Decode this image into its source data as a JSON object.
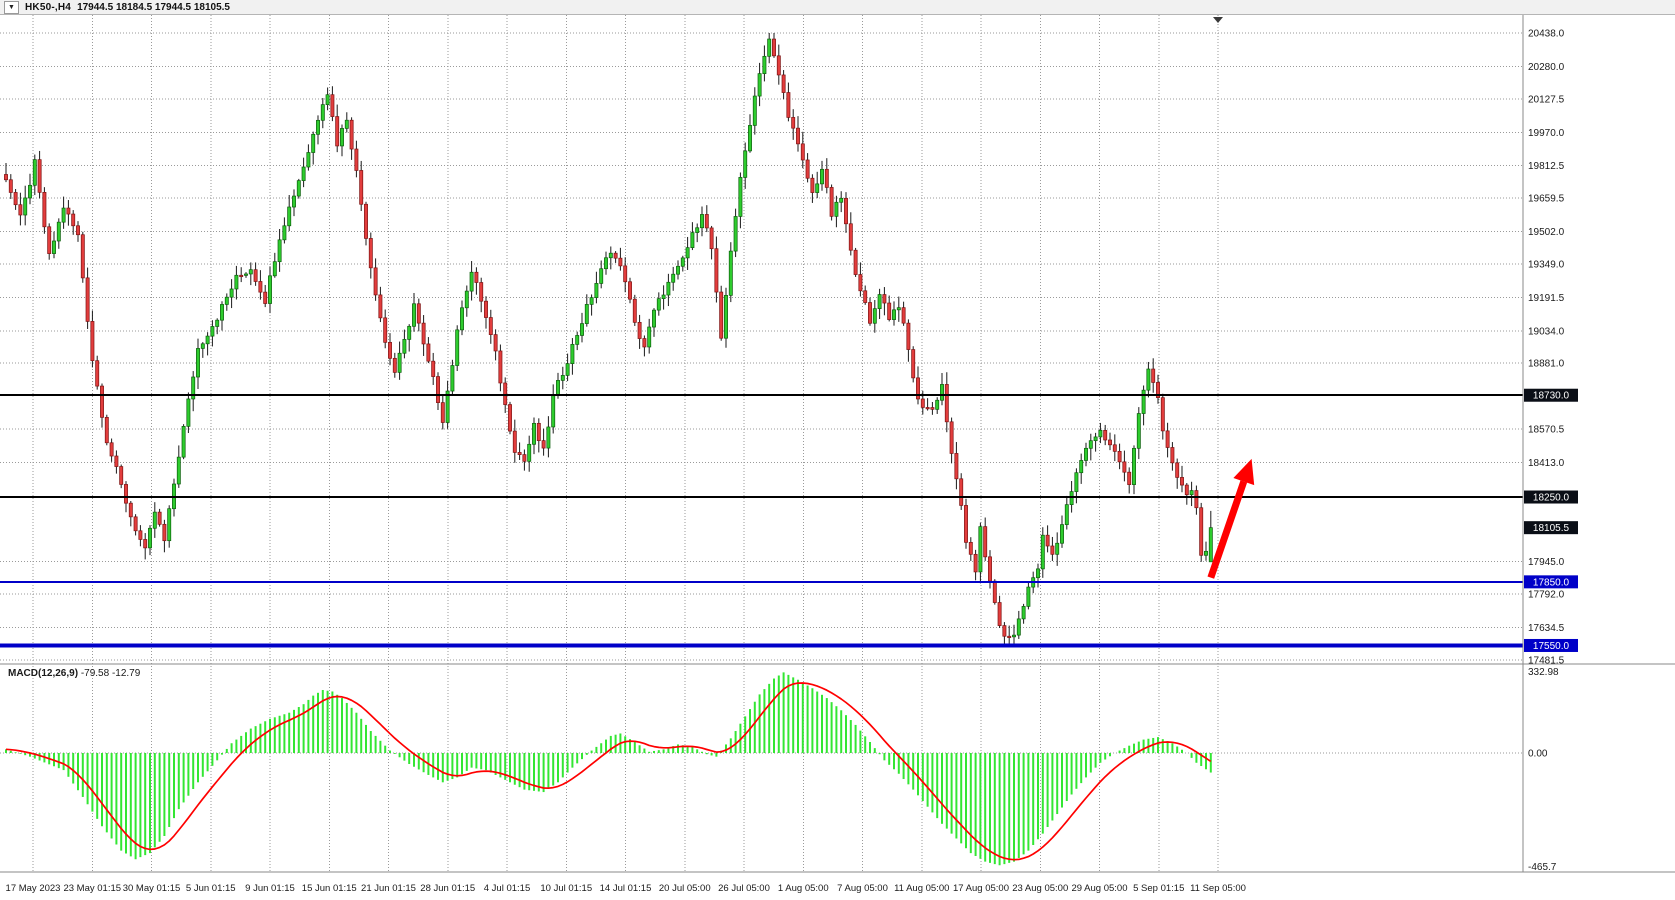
{
  "window": {
    "symbol_period": "HK50-,H4",
    "quote": "17944.5 18184.5 17944.5 18105.5",
    "dropdown_glyph": "▼"
  },
  "colors": {
    "bull": "#2ecc2e",
    "bull_border": "#0b5e0b",
    "bear": "#e23d3d",
    "bear_border": "#7e1212",
    "wick": "#1a1a1a",
    "grid": "#9a9a9a",
    "separator": "#8a8a8a",
    "text": "#1a1a1a",
    "hline_black": "#000000",
    "hline_blue": "#0000c8",
    "tag_dark": "#0a0e16",
    "macd_hist": "#33e633",
    "macd_signal": "#ff0000",
    "arrow": "#ff0000",
    "shift_marker": "#3a3a3a"
  },
  "chart_data": {
    "type": "candlestick_with_macd",
    "symbol": "HK50-",
    "timeframe": "H4",
    "quote": {
      "open": 17944.5,
      "high": 18184.5,
      "low": 17944.5,
      "close": 18105.5
    },
    "y_ticks": [
      20438.0,
      20280.0,
      20127.5,
      19970.0,
      19812.5,
      19659.5,
      19502.0,
      19349.0,
      19191.5,
      19034.0,
      18881.0,
      18570.5,
      18413.0,
      17945.0,
      17792.0,
      17634.5,
      17481.5
    ],
    "levels": [
      {
        "price": 18730.0,
        "label": "18730.0",
        "color": "#000000",
        "width": 2,
        "tag": "#0a0e16"
      },
      {
        "price": 18250.0,
        "label": "18250.0",
        "color": "#000000",
        "width": 2,
        "tag": "#0a0e16"
      },
      {
        "price": 18105.5,
        "label": "18105.5",
        "color": "#0a0e16",
        "width": 0,
        "tag": "#0a0e16"
      },
      {
        "price": 17850.0,
        "label": "17850.0",
        "color": "#0000c8",
        "width": 2,
        "tag": "#0000c8"
      },
      {
        "price": 17550.0,
        "label": "17550.0",
        "color": "#0000c8",
        "width": 4,
        "tag": "#0000c8"
      }
    ],
    "x_labels": [
      "17 May 2023",
      "23 May 01:15",
      "30 May 01:15",
      "5 Jun 01:15",
      "9 Jun 01:15",
      "15 Jun 01:15",
      "21 Jun 01:15",
      "28 Jun 01:15",
      "4 Jul 01:15",
      "10 Jul 01:15",
      "14 Jul 01:15",
      "20 Jul 05:00",
      "26 Jul 05:00",
      "1 Aug 05:00",
      "7 Aug 05:00",
      "11 Aug 05:00",
      "17 Aug 05:00",
      "23 Aug 05:00",
      "29 Aug 05:00",
      "5 Sep 01:15",
      "11 Sep 05:00"
    ],
    "candle_count": 252,
    "price_anchors": [
      [
        0,
        19760
      ],
      [
        3,
        19560
      ],
      [
        6,
        19820
      ],
      [
        9,
        19380
      ],
      [
        12,
        19620
      ],
      [
        15,
        19480
      ],
      [
        18,
        18900
      ],
      [
        21,
        18520
      ],
      [
        24,
        18300
      ],
      [
        26,
        18160
      ],
      [
        29,
        17990
      ],
      [
        31,
        18180
      ],
      [
        33,
        18040
      ],
      [
        36,
        18450
      ],
      [
        40,
        18950
      ],
      [
        44,
        19100
      ],
      [
        48,
        19280
      ],
      [
        51,
        19330
      ],
      [
        54,
        19180
      ],
      [
        57,
        19480
      ],
      [
        60,
        19680
      ],
      [
        63,
        19880
      ],
      [
        66,
        20120
      ],
      [
        67,
        20160
      ],
      [
        69,
        19920
      ],
      [
        71,
        20040
      ],
      [
        73,
        19780
      ],
      [
        76,
        19340
      ],
      [
        79,
        18980
      ],
      [
        81,
        18840
      ],
      [
        83,
        18980
      ],
      [
        85,
        19160
      ],
      [
        87,
        18960
      ],
      [
        89,
        18800
      ],
      [
        91,
        18620
      ],
      [
        93,
        18880
      ],
      [
        95,
        19160
      ],
      [
        97,
        19310
      ],
      [
        99,
        19180
      ],
      [
        102,
        18920
      ],
      [
        104,
        18680
      ],
      [
        106,
        18480
      ],
      [
        108,
        18420
      ],
      [
        110,
        18580
      ],
      [
        112,
        18460
      ],
      [
        114,
        18720
      ],
      [
        117,
        18900
      ],
      [
        120,
        19080
      ],
      [
        123,
        19260
      ],
      [
        126,
        19420
      ],
      [
        129,
        19280
      ],
      [
        131,
        19060
      ],
      [
        133,
        18960
      ],
      [
        135,
        19120
      ],
      [
        137,
        19220
      ],
      [
        140,
        19320
      ],
      [
        143,
        19480
      ],
      [
        145,
        19600
      ],
      [
        147,
        19420
      ],
      [
        149,
        18980
      ],
      [
        151,
        19420
      ],
      [
        153,
        19740
      ],
      [
        155,
        20020
      ],
      [
        157,
        20260
      ],
      [
        159,
        20400
      ],
      [
        161,
        20240
      ],
      [
        163,
        20060
      ],
      [
        165,
        19900
      ],
      [
        168,
        19680
      ],
      [
        170,
        19800
      ],
      [
        172,
        19580
      ],
      [
        174,
        19660
      ],
      [
        176,
        19400
      ],
      [
        178,
        19240
      ],
      [
        180,
        19060
      ],
      [
        182,
        19220
      ],
      [
        184,
        19100
      ],
      [
        186,
        19160
      ],
      [
        188,
        18940
      ],
      [
        190,
        18700
      ],
      [
        193,
        18660
      ],
      [
        195,
        18780
      ],
      [
        197,
        18440
      ],
      [
        199,
        18220
      ],
      [
        200,
        18020
      ],
      [
        202,
        17900
      ],
      [
        203,
        18120
      ],
      [
        205,
        17840
      ],
      [
        207,
        17640
      ],
      [
        209,
        17570
      ],
      [
        211,
        17660
      ],
      [
        213,
        17820
      ],
      [
        215,
        17920
      ],
      [
        216,
        18060
      ],
      [
        218,
        17980
      ],
      [
        220,
        18120
      ],
      [
        222,
        18280
      ],
      [
        224,
        18420
      ],
      [
        226,
        18520
      ],
      [
        228,
        18560
      ],
      [
        230,
        18500
      ],
      [
        232,
        18420
      ],
      [
        234,
        18300
      ],
      [
        236,
        18660
      ],
      [
        238,
        18860
      ],
      [
        240,
        18700
      ],
      [
        241,
        18560
      ],
      [
        243,
        18400
      ],
      [
        245,
        18300
      ],
      [
        247,
        18260
      ],
      [
        248,
        18180
      ],
      [
        249,
        17960
      ],
      [
        250,
        18000
      ],
      [
        251,
        18105.5
      ]
    ],
    "macd": {
      "label": "MACD(12,26,9)",
      "macd_value": "-79.58",
      "signal_value": "-12.79",
      "scale_ticks": [
        {
          "v": 332.98,
          "label": "332.98"
        },
        {
          "v": 0,
          "label": "0.00"
        },
        {
          "v": -465.7,
          "label": "-465.7"
        }
      ],
      "hist_anchors": [
        [
          0,
          15
        ],
        [
          5,
          -15
        ],
        [
          12,
          -70
        ],
        [
          16,
          -180
        ],
        [
          20,
          -300
        ],
        [
          24,
          -400
        ],
        [
          27,
          -435
        ],
        [
          30,
          -410
        ],
        [
          33,
          -340
        ],
        [
          36,
          -230
        ],
        [
          40,
          -120
        ],
        [
          44,
          -30
        ],
        [
          47,
          40
        ],
        [
          51,
          100
        ],
        [
          55,
          140
        ],
        [
          59,
          165
        ],
        [
          62,
          200
        ],
        [
          64,
          235
        ],
        [
          66,
          258
        ],
        [
          68,
          252
        ],
        [
          70,
          225
        ],
        [
          73,
          165
        ],
        [
          76,
          90
        ],
        [
          80,
          10
        ],
        [
          84,
          -45
        ],
        [
          88,
          -90
        ],
        [
          91,
          -120
        ],
        [
          94,
          -100
        ],
        [
          97,
          -60
        ],
        [
          100,
          -70
        ],
        [
          104,
          -110
        ],
        [
          108,
          -150
        ],
        [
          112,
          -160
        ],
        [
          115,
          -120
        ],
        [
          118,
          -60
        ],
        [
          122,
          10
        ],
        [
          126,
          70
        ],
        [
          128,
          80
        ],
        [
          131,
          45
        ],
        [
          134,
          5
        ],
        [
          137,
          15
        ],
        [
          140,
          35
        ],
        [
          143,
          25
        ],
        [
          146,
          -5
        ],
        [
          148,
          -15
        ],
        [
          151,
          60
        ],
        [
          154,
          150
        ],
        [
          157,
          240
        ],
        [
          160,
          305
        ],
        [
          162,
          330
        ],
        [
          165,
          300
        ],
        [
          168,
          265
        ],
        [
          171,
          225
        ],
        [
          174,
          175
        ],
        [
          177,
          115
        ],
        [
          180,
          45
        ],
        [
          183,
          -30
        ],
        [
          186,
          -85
        ],
        [
          189,
          -150
        ],
        [
          192,
          -220
        ],
        [
          195,
          -290
        ],
        [
          198,
          -350
        ],
        [
          201,
          -410
        ],
        [
          204,
          -445
        ],
        [
          207,
          -460
        ],
        [
          210,
          -445
        ],
        [
          213,
          -400
        ],
        [
          216,
          -330
        ],
        [
          219,
          -250
        ],
        [
          222,
          -170
        ],
        [
          225,
          -100
        ],
        [
          228,
          -40
        ],
        [
          231,
          0
        ],
        [
          234,
          30
        ],
        [
          237,
          55
        ],
        [
          240,
          65
        ],
        [
          243,
          40
        ],
        [
          246,
          0
        ],
        [
          248,
          -40
        ],
        [
          251,
          -80
        ]
      ]
    },
    "annotation_arrow": {
      "color": "#ff0000",
      "from_i": 251,
      "from_price": 17870,
      "to_i": 259.5,
      "to_price": 18430
    }
  }
}
